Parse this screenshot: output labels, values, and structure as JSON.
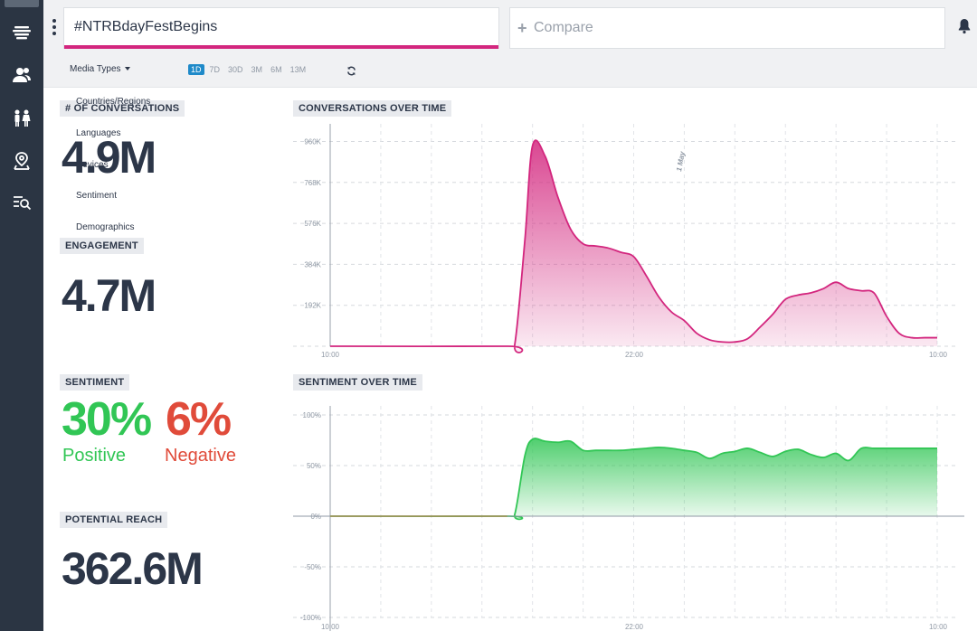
{
  "nav": {
    "items": [
      {
        "icon": "layers-icon"
      },
      {
        "icon": "users-icon"
      },
      {
        "icon": "people-icon"
      },
      {
        "icon": "map-pin-icon"
      },
      {
        "icon": "search-list-icon"
      }
    ]
  },
  "header": {
    "search_value": "#NTRBdayFestBegins",
    "compare_placeholder": "Compare",
    "compare_plus": "+"
  },
  "toolbar": {
    "media_types": "Media Types",
    "periods": [
      "1D",
      "7D",
      "30D",
      "3M",
      "6M",
      "13M"
    ],
    "active_period": "1D"
  },
  "filters": {
    "items": [
      "Countries/Regions",
      "Languages",
      "Devices",
      "Sentiment",
      "Demographics"
    ]
  },
  "metrics": {
    "conversations_label": "# OF CONVERSATIONS",
    "conversations_value": "4.9M",
    "engagement_label": "ENGAGEMENT",
    "engagement_value": "4.7M",
    "sentiment_label": "SENTIMENT",
    "positive_value": "30%",
    "positive_label": "Positive",
    "negative_value": "6%",
    "negative_label": "Negative",
    "reach_label": "POTENTIAL REACH",
    "reach_value": "362.6M"
  },
  "colors": {
    "accent": "#d3267e",
    "positive": "#31c655",
    "negative": "#e04b3a",
    "active_period": "#1f8ac9"
  },
  "chart_data": [
    {
      "type": "area",
      "title": "CONVERSATIONS OVER TIME",
      "xlabel": "",
      "ylabel": "",
      "y_tick_labels": [
        "192K",
        "384K",
        "576K",
        "768K",
        "960K"
      ],
      "x_tick_labels": [
        "10:00",
        "22:00",
        "10:00"
      ],
      "annotation": "1 May",
      "ylim": [
        0,
        1000000
      ],
      "x_hours": [
        0,
        7,
        7.3,
        7.7,
        8,
        8.5,
        9,
        9.5,
        10,
        10.5,
        11,
        11.5,
        12,
        12.5,
        13,
        13.5,
        14,
        14.5,
        15,
        15.5,
        16,
        16.5,
        17,
        17.5,
        18,
        18.5,
        19,
        19.5,
        20,
        20.5,
        21,
        21.5,
        22,
        22.5,
        23,
        23.5,
        24
      ],
      "values": [
        0,
        0,
        10000,
        500000,
        940000,
        890000,
        700000,
        550000,
        480000,
        470000,
        460000,
        440000,
        420000,
        330000,
        230000,
        160000,
        120000,
        60000,
        30000,
        20000,
        20000,
        35000,
        90000,
        150000,
        220000,
        240000,
        250000,
        270000,
        300000,
        270000,
        260000,
        250000,
        140000,
        60000,
        40000,
        40000,
        40000
      ],
      "grid": true
    },
    {
      "type": "area",
      "title": "SENTIMENT OVER TIME",
      "xlabel": "",
      "ylabel": "",
      "y_tick_labels": [
        "-100%",
        "-50%",
        "0%",
        "50%",
        "100%"
      ],
      "x_tick_labels": [
        "10:00",
        "22:00",
        "10:00"
      ],
      "ylim": [
        -100,
        100
      ],
      "x_hours": [
        0,
        7,
        7.3,
        7.7,
        8,
        8.5,
        9,
        9.5,
        10,
        10.5,
        11,
        11.5,
        12,
        12.5,
        13,
        13.5,
        14,
        14.5,
        15,
        15.5,
        16,
        16.5,
        17,
        17.5,
        18,
        18.5,
        19,
        19.5,
        20,
        20.5,
        21,
        21.5,
        22,
        22.5,
        23,
        23.5,
        24
      ],
      "values": [
        0,
        0,
        2,
        60,
        76,
        74,
        73,
        74,
        65,
        65,
        65,
        65,
        66,
        67,
        68,
        67,
        65,
        63,
        57,
        62,
        64,
        67,
        63,
        59,
        64,
        66,
        61,
        58,
        62,
        55,
        67,
        67,
        67,
        67,
        67,
        67,
        67
      ],
      "grid": true
    }
  ]
}
